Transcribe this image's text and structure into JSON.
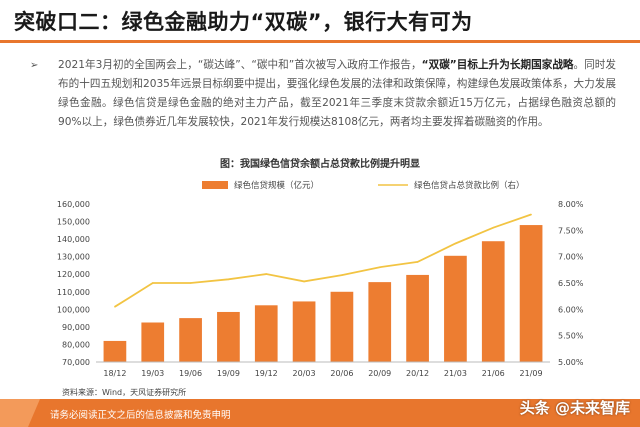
{
  "slide": {
    "title": "突破口二：绿色金融助力“双碳”，银行大有可为",
    "bullet_symbol": "➢"
  },
  "paragraph": {
    "p1": "2021年3月初的全国两会上，“碳达峰”、“碳中和”首次被写入政府工作报告，",
    "p1_bold": "“双碳”目标上升为长期国家战略",
    "p2": "。同时发布的十四五规划和2035年远景目标纲要中提出，要强化绿色发展的法律和政策保障，构建绿色发展政策体系，大力发展绿色金融。绿色信贷是绿色金融的绝对主力产品，截至2021年三季度末贷款余额近15万亿元，占据绿色融资总额的90%以上，绿色债券近几年发展较快，2021年发行规模达8108亿元，两者均主要发挥着碳融资的作用。"
  },
  "chart_title": "图：我国绿色信贷余额占总贷款比例提升明显",
  "chart_data": {
    "type": "bar",
    "categories": [
      "18/12",
      "19/03",
      "19/06",
      "19/09",
      "19/12",
      "20/03",
      "20/06",
      "20/09",
      "20/12",
      "21/03",
      "21/06",
      "21/09"
    ],
    "series": [
      {
        "name": "绿色信贷规模（亿元）",
        "type": "bar",
        "axis": "left",
        "values": [
          82000,
          92500,
          95000,
          98500,
          102300,
          104500,
          110000,
          115500,
          119600,
          130500,
          138800,
          148000
        ]
      },
      {
        "name": "绿色信贷占总贷款比例（右）",
        "type": "line",
        "axis": "right",
        "values": [
          6.05,
          6.5,
          6.5,
          6.57,
          6.67,
          6.53,
          6.65,
          6.8,
          6.9,
          7.25,
          7.55,
          7.8
        ]
      }
    ],
    "ylim": [
      70000,
      160000
    ],
    "yticks": [
      "70,000",
      "80,000",
      "90,000",
      "100,000",
      "110,000",
      "120,000",
      "130,000",
      "140,000",
      "150,000",
      "160,000"
    ],
    "y2lim": [
      5.0,
      8.0
    ],
    "y2ticks": [
      "5.00%",
      "5.50%",
      "6.00%",
      "6.50%",
      "7.00%",
      "7.50%",
      "8.00%"
    ],
    "legend_position": "top",
    "colors": {
      "bar": "#ed7d31",
      "line": "#f2c443"
    }
  },
  "source": "资料来源：Wind，天风证券研究所",
  "footer": {
    "disclaimer": "请务必阅读正文之后的信息披露和免责申明",
    "watermark": "头条 @未来智库"
  }
}
